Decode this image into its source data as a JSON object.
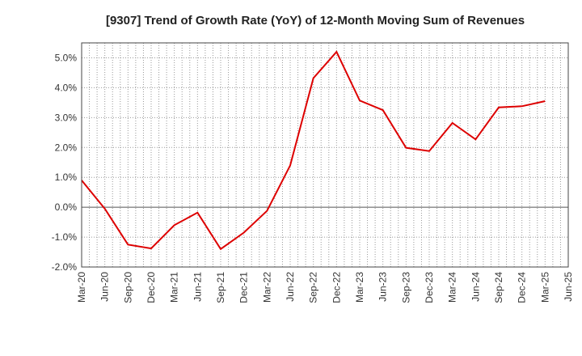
{
  "chart_data": {
    "type": "line",
    "title": "[9307]  Trend of Growth Rate (YoY) of 12-Month Moving Sum of Revenues",
    "xlabel": "",
    "ylabel": "",
    "ylim": [
      -2.0,
      5.5
    ],
    "yticks": [
      "5.0%",
      "4.0%",
      "3.0%",
      "2.0%",
      "1.0%",
      "0.0%",
      "-1.0%",
      "-2.0%"
    ],
    "ytick_values": [
      5,
      4,
      3,
      2,
      1,
      0,
      -1,
      -2
    ],
    "x_tick_labels": [
      "Mar-20",
      "Jun-20",
      "Sep-20",
      "Dec-20",
      "Mar-21",
      "Jun-21",
      "Sep-21",
      "Dec-21",
      "Mar-22",
      "Jun-22",
      "Sep-22",
      "Dec-22",
      "Mar-23",
      "Jun-23",
      "Sep-23",
      "Dec-23",
      "Mar-24",
      "Jun-24",
      "Sep-24",
      "Dec-24",
      "Mar-25",
      "Jun-25"
    ],
    "grid": true,
    "series": [
      {
        "x": [
          "Mar-20",
          "Jun-20",
          "Sep-20",
          "Dec-20",
          "Mar-21",
          "Jun-21",
          "Sep-21",
          "Dec-21",
          "Mar-22",
          "Jun-22",
          "Sep-22",
          "Dec-22",
          "Mar-23",
          "Jun-23",
          "Sep-23",
          "Dec-23",
          "Mar-24",
          "Jun-24",
          "Sep-24",
          "Dec-24",
          "Mar-25"
        ],
        "values": [
          0.9,
          -0.05,
          -1.25,
          -1.38,
          -0.6,
          -0.18,
          -1.4,
          -0.85,
          -0.12,
          1.4,
          4.32,
          5.2,
          3.57,
          3.25,
          1.99,
          1.88,
          2.82,
          2.27,
          3.34,
          3.38,
          3.55
        ],
        "color": "#dd0000"
      }
    ]
  }
}
